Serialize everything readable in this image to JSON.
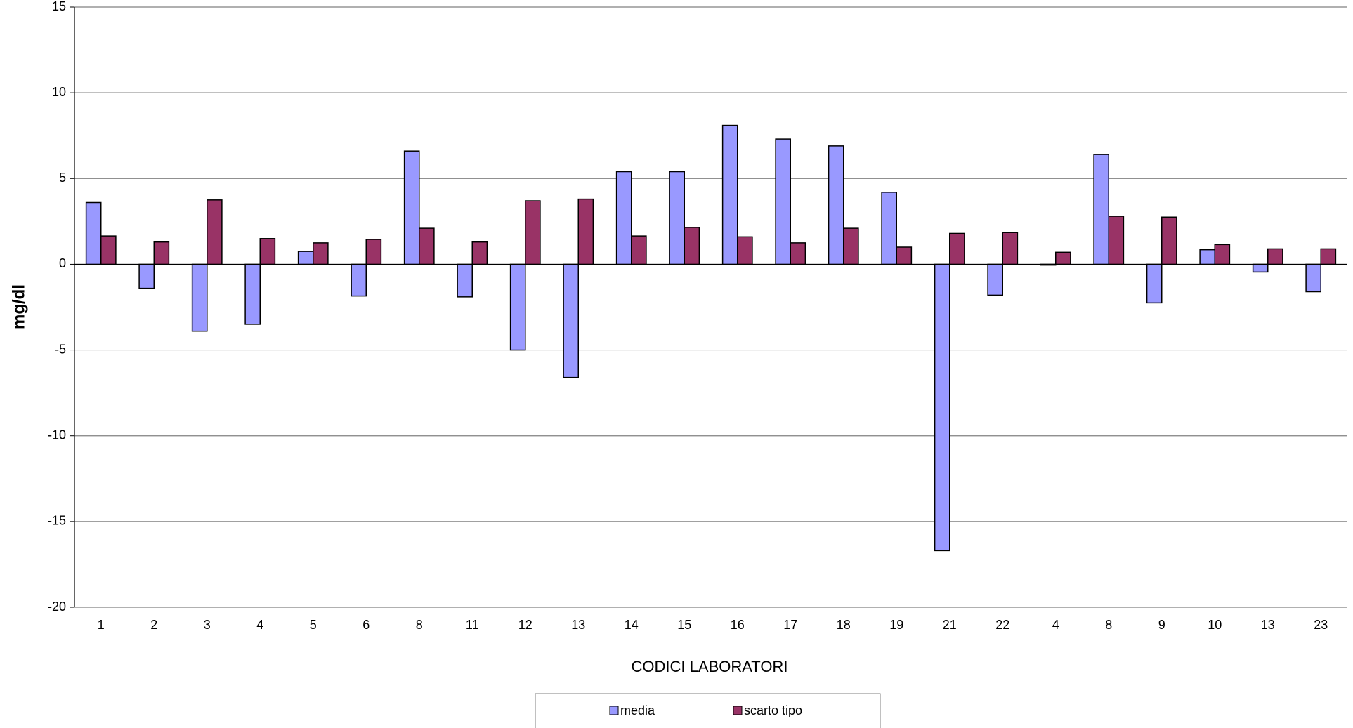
{
  "chart_data": {
    "type": "bar",
    "x_label": "CODICI LABORATORI",
    "y_label": "mg/dl",
    "categories": [
      "1",
      "2",
      "3",
      "4",
      "5",
      "6",
      "8",
      "11",
      "12",
      "13",
      "14",
      "15",
      "16",
      "17",
      "18",
      "19",
      "21",
      "22",
      "4",
      "8",
      "9",
      "10",
      "13",
      "23"
    ],
    "series": [
      {
        "name": "media",
        "color": "#9999ff",
        "values": [
          3.6,
          -1.4,
          -3.9,
          -3.5,
          0.75,
          -1.85,
          6.6,
          -1.9,
          -5.0,
          -6.6,
          5.4,
          5.4,
          8.1,
          7.3,
          6.9,
          4.2,
          -16.7,
          -1.8,
          -0.05,
          6.4,
          -2.25,
          0.85,
          -0.45,
          -1.6
        ]
      },
      {
        "name": "scarto tipo",
        "color": "#993366",
        "values": [
          1.65,
          1.3,
          3.75,
          1.5,
          1.25,
          1.45,
          2.1,
          1.3,
          3.7,
          3.8,
          1.65,
          2.15,
          1.6,
          1.25,
          2.1,
          1.0,
          1.8,
          1.85,
          0.7,
          2.8,
          2.75,
          1.15,
          0.9,
          0.9
        ]
      }
    ],
    "ylim": [
      -20,
      15
    ],
    "yticks": [
      -20,
      -15,
      -10,
      -5,
      0,
      5,
      10,
      15
    ],
    "grid": true
  }
}
